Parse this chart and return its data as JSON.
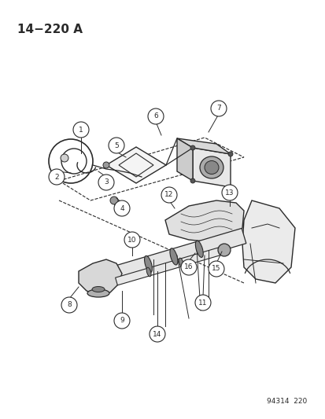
{
  "title_label": "14−220 A",
  "footer_label": "94314  220",
  "bg_color": "#ffffff",
  "line_color": "#2a2a2a",
  "figsize": [
    4.14,
    5.33
  ],
  "dpi": 100
}
